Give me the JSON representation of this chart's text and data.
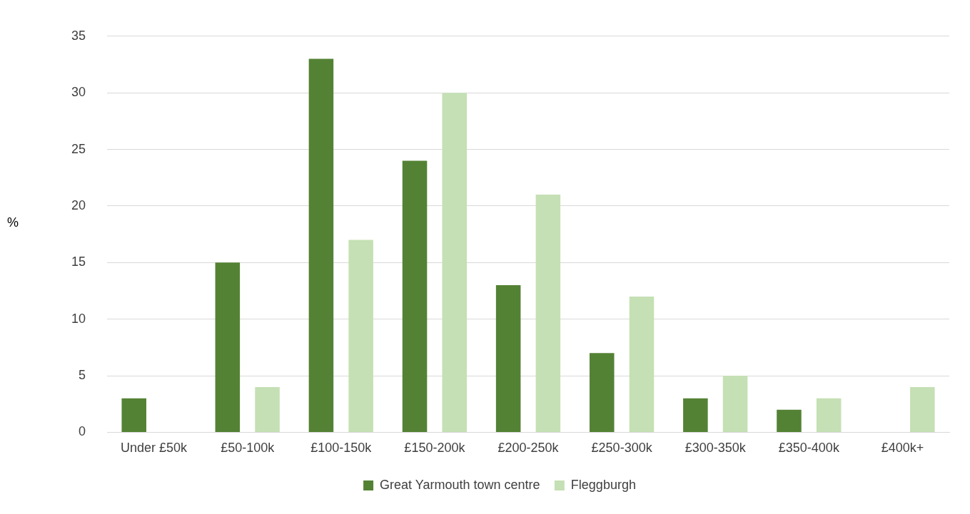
{
  "chart_data": {
    "type": "bar",
    "ylabel": "%",
    "categories": [
      "Under £50k",
      "£50-100k",
      "£100-150k",
      "£150-200k",
      "£200-250k",
      "£250-300k",
      "£300-350k",
      "£350-400k",
      "£400k+"
    ],
    "series": [
      {
        "name": "Great Yarmouth town centre",
        "color": "#548235",
        "values": [
          3,
          15,
          33,
          24,
          13,
          7,
          3,
          2,
          0
        ]
      },
      {
        "name": "Fleggburgh",
        "color": "#c5e0b4",
        "values": [
          0,
          4,
          17,
          30,
          21,
          12,
          5,
          3,
          4
        ]
      }
    ],
    "ylim": [
      0,
      35
    ],
    "yticks": [
      0,
      5,
      10,
      15,
      20,
      25,
      30,
      35
    ],
    "grid": "y",
    "legend": "bottom"
  }
}
